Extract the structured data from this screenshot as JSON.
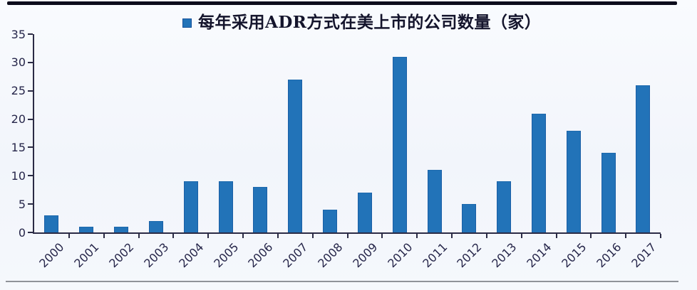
{
  "chart_data": {
    "type": "bar",
    "title": "每年采用ADR方式在美上市的公司数量（家）",
    "categories": [
      "2000",
      "2001",
      "2002",
      "2003",
      "2004",
      "2005",
      "2006",
      "2007",
      "2008",
      "2009",
      "2010",
      "2011",
      "2012",
      "2013",
      "2014",
      "2015",
      "2016",
      "2017"
    ],
    "values": [
      3,
      1,
      1,
      2,
      9,
      9,
      8,
      27,
      4,
      7,
      31,
      11,
      5,
      9,
      21,
      18,
      14,
      26
    ],
    "xlabel": "",
    "ylabel": "",
    "ylim": [
      0,
      35
    ],
    "yticks": [
      0,
      5,
      10,
      15,
      20,
      25,
      30,
      35
    ],
    "grid": false,
    "legend_position": "top-center",
    "x_tick_label_rotation_deg": -45
  },
  "colors": {
    "bar_fill": "#2273b8",
    "bar_edge": "#1a5fa6",
    "axis_line": "#2b2b45",
    "tick_label": "#26264a",
    "legend_text": "#14142c",
    "top_rule": "#0c0c1c",
    "bottom_rule": "#8f9399",
    "background": "#f4f7fc"
  }
}
